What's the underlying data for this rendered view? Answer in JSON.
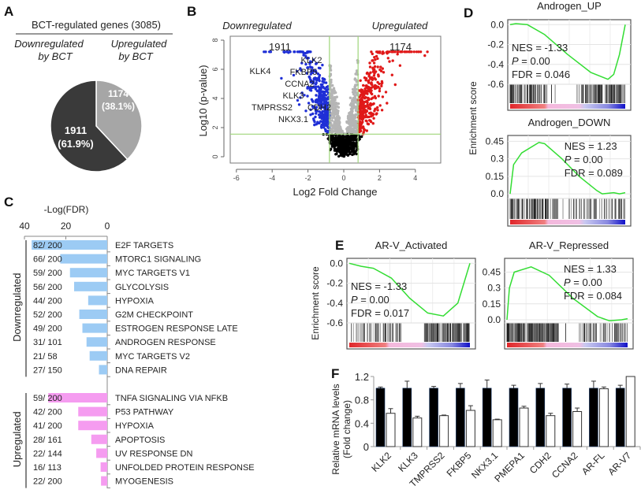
{
  "panels": {
    "a": "A",
    "b": "B",
    "c": "C",
    "d": "D",
    "e": "E",
    "f": "F"
  },
  "chart_data": [
    {
      "type": "pie",
      "title": "BCT-regulated genes (3085)",
      "legend": {
        "down": "Downregulated by BCT",
        "down_l1": "Downregulated",
        "down_l2": "by BCT",
        "up_l1": "Upregulated",
        "up_l2": "by BCT"
      },
      "slices": [
        {
          "name": "Downregulated",
          "value": 1911,
          "label": "1911",
          "pct_label": "(61.9%)",
          "color": "#3a3a3a"
        },
        {
          "name": "Upregulated",
          "value": 1174,
          "label": "1174",
          "pct_label": "(38.1%)",
          "color": "#a6a6a6"
        }
      ]
    },
    {
      "type": "scatter",
      "header_left": "Downregulated",
      "header_right": "Upregulated",
      "count_down": "1911",
      "count_up": "1174",
      "xlabel": "Log2 Fold Change",
      "ylabel": "Log10 (p-value)",
      "xlim": [
        -6.3,
        5.5
      ],
      "ylim": [
        -0.3,
        8.5
      ],
      "xticks": [
        "-6",
        "-4",
        "-2",
        "0",
        "2",
        "4"
      ],
      "yticks": [
        "0",
        "2",
        "4",
        "6",
        "8"
      ],
      "thresholds": {
        "log2fc": 0.8,
        "log10p": 1.55
      },
      "colors": {
        "down": "#1f2fd6",
        "up": "#e01818",
        "ns": "#b5b5b5",
        "nonsig": "#000000",
        "threshold": "#9fd67a"
      },
      "gene_labels": [
        {
          "gene": "KLK4",
          "x": -4.1,
          "y": 6.0
        },
        {
          "gene": "KLK2",
          "x": -2.5,
          "y": 6.3
        },
        {
          "gene": "FKBP5",
          "x": -2.8,
          "y": 5.8
        },
        {
          "gene": "CCNA2",
          "x": -2.8,
          "y": 4.8
        },
        {
          "gene": "KLK3",
          "x": -3.0,
          "y": 4.3
        },
        {
          "gene": "TMPRSS2",
          "x": -3.3,
          "y": 3.9
        },
        {
          "gene": "NKX3.1",
          "x": -3.0,
          "y": 3.3
        },
        {
          "gene": "CDH2",
          "x": -1.9,
          "y": 3.6
        }
      ]
    },
    {
      "type": "bar",
      "orientation": "horizontal",
      "xlabel": "-Log(FDR)",
      "xticks": [
        "40",
        "20",
        "0"
      ],
      "xlim": [
        0,
        40
      ],
      "groups": [
        {
          "name": "Downregulated",
          "color": "#9ccbf4",
          "items": [
            {
              "label": "E2F TARGETS",
              "count": "82/ 200",
              "value": 36.5
            },
            {
              "label": "MTORC1  SIGNALING",
              "count": "66/ 200",
              "value": 22.7
            },
            {
              "label": "MYC TARGETS  V1",
              "count": "59/ 200",
              "value": 18
            },
            {
              "label": "GLYCOLYSIS",
              "count": "56/ 200",
              "value": 16
            },
            {
              "label": "HYPOXIA",
              "count": "44/ 200",
              "value": 9.2
            },
            {
              "label": "G2M CHECKPOINT",
              "count": "52/ 200",
              "value": 13.5
            },
            {
              "label": "ESTROGEN  RESPONSE LATE",
              "count": "49/ 200",
              "value": 12
            },
            {
              "label": "ANDROGEN  RESPONSE",
              "count": "31/ 101",
              "value": 10
            },
            {
              "label": "MYC TARGETS  V2",
              "count": "21/ 58",
              "value": 8.5
            },
            {
              "label": "DNA  REPAIR",
              "count": "27/ 150",
              "value": 4
            }
          ]
        },
        {
          "name": "Upregulated",
          "color": "#f59cf0",
          "items": [
            {
              "label": "TNFA  SIGNALING  VIA NFKB",
              "count": "59/ 200",
              "value": 28.5
            },
            {
              "label": "P53 PATHWAY",
              "count": "42/ 200",
              "value": 14
            },
            {
              "label": "HYPOXIA",
              "count": "41/ 200",
              "value": 14
            },
            {
              "label": "APOPTOSIS",
              "count": "28/ 161",
              "value": 7.7
            },
            {
              "label": "UV RESPONSE  DN",
              "count": "22/ 144",
              "value": 5.3
            },
            {
              "label": "UNFOLDED  PROTEIN  RESPONSE",
              "count": "16/ 113",
              "value": 3.2
            },
            {
              "label": "MYOGENESIS",
              "count": "22/ 200",
              "value": 3
            }
          ]
        }
      ]
    },
    {
      "type": "line",
      "ylabel": "Enrichment score",
      "plots": [
        {
          "title": "Androgen_UP",
          "nes": "NES = -1.33",
          "p_label": "P",
          "p_value": " = 0.00",
          "fdr": "FDR = 0.046",
          "yticks": [
            "0.0",
            "-0.2",
            "-0.4",
            "-0.6"
          ],
          "ytick_values": [
            0,
            -0.2,
            -0.4,
            -0.6
          ],
          "ylim": [
            -0.6,
            0.05
          ],
          "x": [
            0,
            0.05,
            0.15,
            0.3,
            0.5,
            0.7,
            0.85,
            0.9,
            0.95,
            1
          ],
          "y": [
            0,
            0.01,
            0,
            -0.1,
            -0.3,
            -0.48,
            -0.55,
            -0.5,
            -0.3,
            0
          ]
        },
        {
          "title": "Androgen_DOWN",
          "nes": "NES = 1.23",
          "p_label": "P",
          "p_value": " = 0.00",
          "fdr": "FDR = 0.089",
          "yticks": [
            "0.45",
            "0.3",
            "0.15",
            "0.0"
          ],
          "ytick_values": [
            0.45,
            0.3,
            0.15,
            0
          ],
          "ylim": [
            -0.04,
            0.5
          ],
          "x": [
            0,
            0.03,
            0.1,
            0.25,
            0.3,
            0.45,
            0.6,
            0.75,
            0.8,
            0.9,
            0.95,
            1
          ],
          "y": [
            0,
            0.25,
            0.35,
            0.44,
            0.43,
            0.3,
            0.15,
            0.03,
            0,
            0.01,
            0,
            0.01
          ]
        },
        {
          "title": "AR-V_Activated",
          "nes": "NES = -1.33",
          "p_label": "P",
          "p_value": " = 0.00",
          "fdr": "FDR = 0.017",
          "yticks": [
            "0.0",
            "-0.2",
            "-0.4",
            "-0.6"
          ],
          "ytick_values": [
            0,
            -0.2,
            -0.4,
            -0.6
          ],
          "ylim": [
            -0.6,
            0.05
          ],
          "x": [
            0,
            0.1,
            0.2,
            0.35,
            0.5,
            0.65,
            0.78,
            0.9,
            0.95,
            1
          ],
          "y": [
            0,
            -0.03,
            -0.05,
            -0.15,
            -0.35,
            -0.5,
            -0.53,
            -0.4,
            -0.2,
            0
          ]
        },
        {
          "title": "AR-V_Repressed",
          "nes": "NES = 1.33",
          "p_label": "P",
          "p_value": " = 0.00",
          "fdr": "FDR = 0.084",
          "yticks": [
            "0.45",
            "0.3",
            "0.15",
            "0.0"
          ],
          "ytick_values": [
            0.45,
            0.3,
            0.15,
            0
          ],
          "ylim": [
            -0.03,
            0.58
          ],
          "x": [
            0,
            0.02,
            0.06,
            0.2,
            0.35,
            0.55,
            0.75,
            0.85,
            0.95,
            1
          ],
          "y": [
            0,
            0.3,
            0.45,
            0.5,
            0.42,
            0.2,
            0.03,
            -0.01,
            0,
            0.01
          ]
        }
      ],
      "curve_color": "#33dd33"
    },
    {
      "type": "bar",
      "ylabel_l1": "Relative mRNA levels",
      "ylabel_l2": "(Fold change)",
      "ylim": [
        0,
        1.2
      ],
      "yticks": [
        "1.2",
        "0.8",
        "0.4",
        "0"
      ],
      "ytick_values": [
        1.2,
        0.8,
        0.4,
        0
      ],
      "categories": [
        "KLK2",
        "KLK3",
        "TMPRSS2",
        "FKBP5",
        "NKX3.1",
        "PMEPA1",
        "CDH2",
        "CCNA2",
        "AR-FL",
        "AR-V7"
      ],
      "series": [
        {
          "color": "#000000",
          "values": [
            1,
            1,
            1,
            1,
            1,
            1,
            1,
            1,
            1,
            1
          ],
          "errors": [
            0.02,
            0.12,
            0.03,
            0.08,
            0.14,
            0.05,
            0.08,
            0.07,
            0.12,
            0.05
          ]
        },
        {
          "color": "#ffffff",
          "values": [
            0.57,
            0.49,
            0.53,
            0.62,
            0.46,
            0.66,
            0.53,
            0.6,
            0.99,
            1.2
          ],
          "errors": [
            0.08,
            0.03,
            0.01,
            0.08,
            0.01,
            0.03,
            0.04,
            0.06,
            0.03,
            0
          ]
        }
      ]
    }
  ]
}
